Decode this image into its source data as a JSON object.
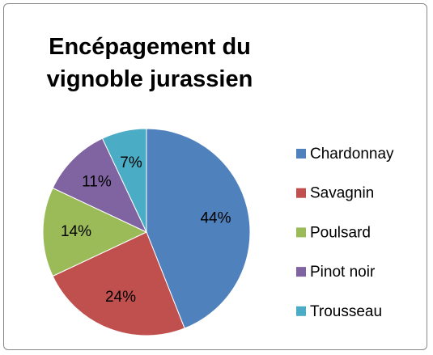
{
  "chart_data": {
    "type": "pie",
    "title": "Encépagement du vignoble jurassien",
    "categories": [
      "Chardonnay",
      "Savagnin",
      "Poulsard",
      "Pinot noir",
      "Trousseau"
    ],
    "values": [
      44,
      24,
      14,
      11,
      7
    ],
    "value_labels": [
      "44%",
      "24%",
      "14%",
      "11%",
      "7%"
    ],
    "colors": [
      "#4f81bd",
      "#c0504d",
      "#9bbb59",
      "#8064a2",
      "#4bacc6"
    ],
    "legend": "right"
  }
}
